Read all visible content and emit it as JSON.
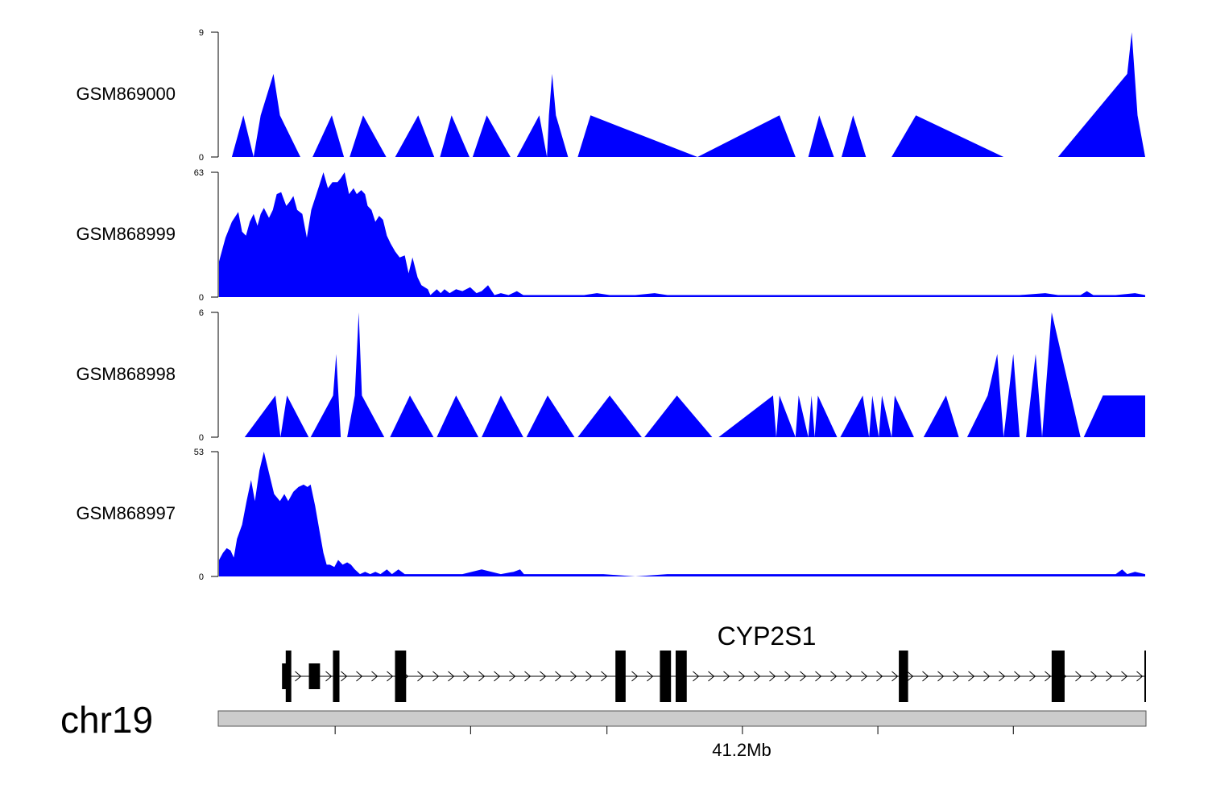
{
  "chart_data": {
    "type": "area",
    "title": "",
    "x_range_px_note": "",
    "colors": {
      "signal": "#0000ff",
      "gene": "#000000",
      "ideogram": "#cccccc"
    },
    "tracks": [
      {
        "name": "GSM869000",
        "ymax": 9,
        "ymin": 0,
        "ymax_label": "9",
        "ymin_label": "0",
        "points": [
          [
            0,
            0
          ],
          [
            0.02,
            0
          ],
          [
            0.038,
            3
          ],
          [
            0.054,
            0
          ],
          [
            0.065,
            3
          ],
          [
            0.085,
            6
          ],
          [
            0.095,
            3
          ],
          [
            0.127,
            0
          ],
          [
            0.146,
            0
          ],
          [
            0.176,
            3
          ],
          [
            0.195,
            0
          ],
          [
            0.204,
            0
          ],
          [
            0.225,
            3
          ],
          [
            0.261,
            0
          ],
          [
            0.275,
            0
          ],
          [
            0.311,
            3
          ],
          [
            0.336,
            0
          ],
          [
            0.345,
            0
          ],
          [
            0.363,
            3
          ],
          [
            0.391,
            0
          ],
          [
            0.396,
            0
          ],
          [
            0.418,
            3
          ],
          [
            0.455,
            0
          ],
          [
            0.465,
            0
          ],
          [
            0.5,
            3
          ],
          [
            0.512,
            0
          ],
          [
            0.515,
            3
          ],
          [
            0.52,
            6
          ],
          [
            0.526,
            3
          ],
          [
            0.545,
            0
          ],
          [
            0.56,
            0
          ],
          [
            0.58,
            3
          ],
          [
            0.747,
            0
          ],
          [
            0.875,
            3
          ],
          [
            0.9,
            0
          ],
          [
            0.92,
            0
          ],
          [
            0.937,
            3
          ],
          [
            0.96,
            0
          ],
          [
            0.972,
            0
          ],
          [
            0.99,
            3
          ],
          [
            1.01,
            0
          ],
          [
            1.05,
            0
          ],
          [
            1.088,
            3
          ],
          [
            1.225,
            0
          ],
          [
            1.31,
            0
          ],
          [
            1.418,
            6
          ],
          [
            1.425,
            9
          ],
          [
            1.434,
            3
          ],
          [
            1.446,
            0
          ]
        ],
        "x_scale": 1.446
      },
      {
        "name": "GSM868999",
        "ymax": 63,
        "ymin": 0,
        "ymax_label": "63",
        "ymin_label": "0",
        "points": [
          [
            0,
            18
          ],
          [
            0.01,
            30
          ],
          [
            0.02,
            38
          ],
          [
            0.03,
            43
          ],
          [
            0.036,
            33
          ],
          [
            0.042,
            31
          ],
          [
            0.048,
            38
          ],
          [
            0.054,
            42
          ],
          [
            0.06,
            36
          ],
          [
            0.065,
            42
          ],
          [
            0.07,
            45
          ],
          [
            0.078,
            40
          ],
          [
            0.084,
            44
          ],
          [
            0.09,
            52
          ],
          [
            0.097,
            53
          ],
          [
            0.105,
            46
          ],
          [
            0.11,
            48
          ],
          [
            0.116,
            51
          ],
          [
            0.122,
            44
          ],
          [
            0.13,
            42
          ],
          [
            0.137,
            30
          ],
          [
            0.144,
            44
          ],
          [
            0.15,
            50
          ],
          [
            0.156,
            56
          ],
          [
            0.163,
            63
          ],
          [
            0.17,
            55
          ],
          [
            0.177,
            58
          ],
          [
            0.185,
            58
          ],
          [
            0.19,
            60
          ],
          [
            0.196,
            63
          ],
          [
            0.203,
            52
          ],
          [
            0.21,
            55
          ],
          [
            0.215,
            52
          ],
          [
            0.222,
            54
          ],
          [
            0.228,
            52
          ],
          [
            0.232,
            46
          ],
          [
            0.238,
            44
          ],
          [
            0.244,
            38
          ],
          [
            0.25,
            41
          ],
          [
            0.256,
            39
          ],
          [
            0.262,
            31
          ],
          [
            0.268,
            27
          ],
          [
            0.275,
            23
          ],
          [
            0.282,
            20
          ],
          [
            0.29,
            21
          ],
          [
            0.296,
            12
          ],
          [
            0.302,
            20
          ],
          [
            0.31,
            10
          ],
          [
            0.316,
            6
          ],
          [
            0.326,
            4
          ],
          [
            0.33,
            1
          ],
          [
            0.34,
            4
          ],
          [
            0.346,
            2
          ],
          [
            0.352,
            4
          ],
          [
            0.36,
            2
          ],
          [
            0.37,
            4
          ],
          [
            0.38,
            3
          ],
          [
            0.392,
            5
          ],
          [
            0.402,
            2
          ],
          [
            0.41,
            3
          ],
          [
            0.42,
            6
          ],
          [
            0.43,
            1
          ],
          [
            0.44,
            2
          ],
          [
            0.452,
            1
          ],
          [
            0.465,
            3
          ],
          [
            0.475,
            1
          ],
          [
            0.49,
            1
          ],
          [
            0.5,
            1
          ],
          [
            0.515,
            1
          ],
          [
            0.53,
            1
          ],
          [
            0.545,
            1
          ],
          [
            0.56,
            1
          ],
          [
            0.57,
            1
          ],
          [
            0.59,
            2
          ],
          [
            0.61,
            1
          ],
          [
            0.63,
            1
          ],
          [
            0.65,
            1
          ],
          [
            0.68,
            2
          ],
          [
            0.7,
            1
          ],
          [
            0.72,
            1
          ],
          [
            0.75,
            1
          ],
          [
            0.8,
            1
          ],
          [
            0.85,
            1
          ],
          [
            0.9,
            1
          ],
          [
            0.95,
            1
          ],
          [
            1.0,
            1
          ],
          [
            1.05,
            1
          ],
          [
            1.1,
            1
          ],
          [
            1.15,
            1
          ],
          [
            1.2,
            1
          ],
          [
            1.25,
            1
          ],
          [
            1.29,
            2
          ],
          [
            1.31,
            1
          ],
          [
            1.345,
            1
          ],
          [
            1.355,
            3
          ],
          [
            1.365,
            1
          ],
          [
            1.4,
            1
          ],
          [
            1.43,
            2
          ],
          [
            1.446,
            1
          ]
        ],
        "x_scale": 1.446
      },
      {
        "name": "GSM868998",
        "ymax": 6,
        "ymin": 0,
        "ymax_label": "6",
        "ymin_label": "0",
        "points": [
          [
            0,
            0
          ],
          [
            0.04,
            0
          ],
          [
            0.088,
            2
          ],
          [
            0.096,
            0
          ],
          [
            0.106,
            2
          ],
          [
            0.14,
            0
          ],
          [
            0.143,
            0
          ],
          [
            0.178,
            2
          ],
          [
            0.183,
            4
          ],
          [
            0.19,
            0
          ],
          [
            0.2,
            0
          ],
          [
            0.212,
            2
          ],
          [
            0.218,
            6
          ],
          [
            0.223,
            2
          ],
          [
            0.258,
            0
          ],
          [
            0.267,
            0
          ],
          [
            0.298,
            2
          ],
          [
            0.335,
            0
          ],
          [
            0.34,
            0
          ],
          [
            0.37,
            2
          ],
          [
            0.405,
            0
          ],
          [
            0.41,
            0
          ],
          [
            0.44,
            2
          ],
          [
            0.475,
            0
          ],
          [
            0.48,
            0
          ],
          [
            0.513,
            2
          ],
          [
            0.555,
            0
          ],
          [
            0.56,
            0
          ],
          [
            0.61,
            2
          ],
          [
            0.66,
            0
          ],
          [
            0.664,
            0
          ],
          [
            0.715,
            2
          ],
          [
            0.77,
            0
          ],
          [
            0.78,
            0
          ],
          [
            0.865,
            2
          ],
          [
            0.87,
            0
          ],
          [
            0.875,
            2
          ],
          [
            0.9,
            0
          ],
          [
            0.905,
            2
          ],
          [
            0.92,
            0
          ],
          [
            0.925,
            2
          ],
          [
            0.93,
            0
          ],
          [
            0.935,
            2
          ],
          [
            0.965,
            0
          ],
          [
            0.97,
            0
          ],
          [
            1.005,
            2
          ],
          [
            1.015,
            0
          ],
          [
            1.02,
            2
          ],
          [
            1.03,
            0
          ],
          [
            1.035,
            2
          ],
          [
            1.05,
            0
          ],
          [
            1.055,
            2
          ],
          [
            1.085,
            0
          ],
          [
            1.1,
            0
          ],
          [
            1.135,
            2
          ],
          [
            1.155,
            0
          ],
          [
            1.168,
            0
          ],
          [
            1.2,
            2
          ],
          [
            1.215,
            4
          ],
          [
            1.225,
            0
          ],
          [
            1.24,
            4
          ],
          [
            1.25,
            0
          ],
          [
            1.26,
            0
          ],
          [
            1.275,
            4
          ],
          [
            1.285,
            0
          ],
          [
            1.3,
            6
          ],
          [
            1.345,
            0
          ],
          [
            1.35,
            0
          ],
          [
            1.38,
            2
          ],
          [
            1.446,
            2
          ]
        ],
        "x_scale": 1.446
      },
      {
        "name": "GSM868997",
        "ymax": 53,
        "ymin": 0,
        "ymax_label": "53",
        "ymin_label": "0",
        "points": [
          [
            0,
            7
          ],
          [
            0.006,
            10
          ],
          [
            0.012,
            12
          ],
          [
            0.018,
            11
          ],
          [
            0.023,
            8
          ],
          [
            0.028,
            16
          ],
          [
            0.036,
            22
          ],
          [
            0.043,
            32
          ],
          [
            0.05,
            41
          ],
          [
            0.056,
            32
          ],
          [
            0.063,
            45
          ],
          [
            0.07,
            53
          ],
          [
            0.078,
            44
          ],
          [
            0.086,
            35
          ],
          [
            0.095,
            32
          ],
          [
            0.102,
            35
          ],
          [
            0.108,
            32
          ],
          [
            0.116,
            36
          ],
          [
            0.124,
            38
          ],
          [
            0.132,
            39
          ],
          [
            0.138,
            38
          ],
          [
            0.143,
            39
          ],
          [
            0.15,
            30
          ],
          [
            0.157,
            19
          ],
          [
            0.163,
            10
          ],
          [
            0.168,
            5
          ],
          [
            0.173,
            5
          ],
          [
            0.18,
            4
          ],
          [
            0.186,
            7
          ],
          [
            0.193,
            5
          ],
          [
            0.2,
            6
          ],
          [
            0.206,
            5
          ],
          [
            0.212,
            3
          ],
          [
            0.22,
            1
          ],
          [
            0.228,
            2
          ],
          [
            0.236,
            1
          ],
          [
            0.244,
            2
          ],
          [
            0.252,
            1
          ],
          [
            0.262,
            3
          ],
          [
            0.27,
            1
          ],
          [
            0.28,
            3
          ],
          [
            0.29,
            1
          ],
          [
            0.3,
            1
          ],
          [
            0.31,
            1
          ],
          [
            0.32,
            1
          ],
          [
            0.34,
            1
          ],
          [
            0.36,
            1
          ],
          [
            0.38,
            1
          ],
          [
            0.41,
            3
          ],
          [
            0.44,
            1
          ],
          [
            0.46,
            2
          ],
          [
            0.47,
            3
          ],
          [
            0.476,
            1
          ],
          [
            0.5,
            1
          ],
          [
            0.55,
            1
          ],
          [
            0.6,
            1
          ],
          [
            0.65,
            0
          ],
          [
            0.7,
            1
          ],
          [
            0.75,
            1
          ],
          [
            0.78,
            1
          ],
          [
            0.8,
            1
          ],
          [
            0.82,
            1
          ],
          [
            0.85,
            1
          ],
          [
            0.88,
            1
          ],
          [
            0.9,
            1
          ],
          [
            0.95,
            1
          ],
          [
            1.0,
            1
          ],
          [
            1.05,
            1
          ],
          [
            1.1,
            1
          ],
          [
            1.15,
            1
          ],
          [
            1.2,
            1
          ],
          [
            1.25,
            1
          ],
          [
            1.3,
            1
          ],
          [
            1.4,
            1
          ],
          [
            1.41,
            3
          ],
          [
            1.418,
            1
          ],
          [
            1.43,
            2
          ],
          [
            1.446,
            1
          ]
        ],
        "x_scale": 1.446
      }
    ],
    "gene": {
      "name": "CYP2S1",
      "exons": [
        [
          0.072,
          0.078
        ],
        [
          0.097,
          0.109
        ],
        [
          0.123,
          0.13
        ],
        [
          0.19,
          0.202
        ],
        [
          0.428,
          0.439
        ],
        [
          0.476,
          0.488
        ],
        [
          0.493,
          0.505
        ],
        [
          0.734,
          0.744
        ],
        [
          0.899,
          0.913
        ]
      ],
      "small_block": [
        0.068,
        0.073
      ],
      "line_start": 0.07,
      "line_end": 1.0,
      "end_tick": 1.0
    },
    "chromosome": {
      "name": "chr19",
      "axis_label": "41.2Mb",
      "ticks": [
        0.126,
        0.272,
        0.419,
        0.565,
        0.711,
        0.857
      ],
      "label_tick": 0.565
    }
  }
}
